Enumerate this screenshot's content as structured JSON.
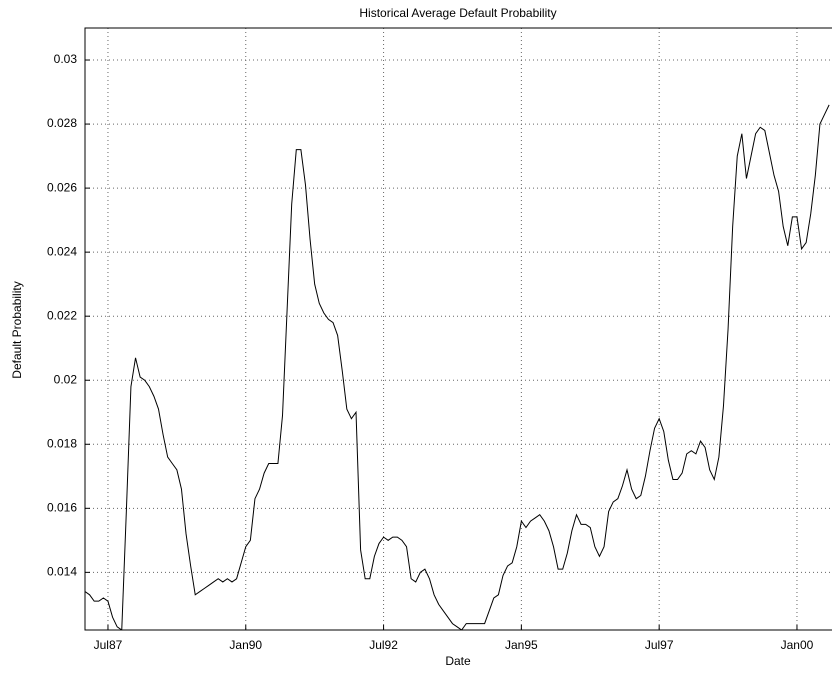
{
  "chart_data": {
    "type": "line",
    "title": "Historical Average Default Probability",
    "x_label": "Date",
    "y_label": "Default Probability",
    "categories": [
      null,
      null,
      null,
      null,
      null,
      "Jul87",
      null,
      null,
      null,
      null,
      null,
      null,
      null,
      null,
      null,
      null,
      null,
      null,
      null,
      null,
      null,
      null,
      null,
      null,
      null,
      null,
      null,
      null,
      null,
      null,
      null,
      null,
      null,
      null,
      null,
      "Jan90",
      null,
      null,
      null,
      null,
      null,
      null,
      null,
      null,
      null,
      null,
      null,
      null,
      null,
      null,
      null,
      null,
      null,
      null,
      null,
      null,
      null,
      null,
      null,
      null,
      null,
      null,
      null,
      null,
      null,
      "Jul92",
      null,
      null,
      null,
      null,
      null,
      null,
      null,
      null,
      null,
      null,
      null,
      null,
      null,
      null,
      null,
      null,
      null,
      null,
      null,
      null,
      null,
      null,
      null,
      null,
      null,
      null,
      null,
      null,
      null,
      "Jan95",
      null,
      null,
      null,
      null,
      null,
      null,
      null,
      null,
      null,
      null,
      null,
      null,
      null,
      null,
      null,
      null,
      null,
      null,
      null,
      null,
      null,
      null,
      null,
      null,
      null,
      null,
      null,
      null,
      null,
      "Jul97",
      null,
      null,
      null,
      null,
      null,
      null,
      null,
      null,
      null,
      null,
      null,
      null,
      null,
      null,
      null,
      null,
      null,
      null,
      null,
      null,
      null,
      null,
      null,
      null,
      null,
      null,
      null,
      null,
      null,
      "Jan00",
      null,
      null,
      null,
      null,
      null,
      null,
      null
    ],
    "values": [
      0.0134,
      0.0133,
      0.0131,
      0.0131,
      0.0132,
      0.0131,
      0.0126,
      0.0123,
      0.0122,
      0.0159,
      0.0198,
      0.0207,
      0.0201,
      0.02,
      0.0198,
      0.0195,
      0.0191,
      0.0183,
      0.0176,
      0.0174,
      0.0172,
      0.0166,
      0.0152,
      0.0142,
      0.0133,
      0.0134,
      0.0135,
      0.0136,
      0.0137,
      0.0138,
      0.0137,
      0.0138,
      0.0137,
      0.0138,
      0.0143,
      0.0148,
      0.015,
      0.0163,
      0.0166,
      0.0171,
      0.0174,
      0.0174,
      0.0174,
      0.0189,
      0.0222,
      0.0255,
      0.0272,
      0.0272,
      0.0261,
      0.0244,
      0.023,
      0.0224,
      0.0221,
      0.0219,
      0.0218,
      0.0214,
      0.0203,
      0.0191,
      0.0188,
      0.019,
      0.0147,
      0.0138,
      0.0138,
      0.0145,
      0.0149,
      0.0151,
      0.015,
      0.0151,
      0.0151,
      0.015,
      0.0148,
      0.0138,
      0.0137,
      0.014,
      0.0141,
      0.0138,
      0.0133,
      0.013,
      0.0128,
      0.0126,
      0.0124,
      0.0123,
      0.0122,
      0.0124,
      0.0124,
      0.0124,
      0.0124,
      0.0124,
      0.0128,
      0.0132,
      0.0133,
      0.0139,
      0.0142,
      0.0143,
      0.0148,
      0.0156,
      0.0154,
      0.0156,
      0.0157,
      0.0158,
      0.0156,
      0.0153,
      0.0148,
      0.0141,
      0.0141,
      0.0146,
      0.0153,
      0.0158,
      0.0155,
      0.0155,
      0.0154,
      0.0148,
      0.0145,
      0.0148,
      0.0159,
      0.0162,
      0.0163,
      0.0167,
      0.0172,
      0.0166,
      0.0163,
      0.0164,
      0.017,
      0.0178,
      0.0185,
      0.0188,
      0.0184,
      0.0175,
      0.0169,
      0.0169,
      0.0171,
      0.0177,
      0.0178,
      0.0177,
      0.0181,
      0.0179,
      0.0172,
      0.0169,
      0.0176,
      0.0192,
      0.0216,
      0.0248,
      0.027,
      0.0277,
      0.0263,
      0.027,
      0.0277,
      0.0279,
      0.0278,
      0.0271,
      0.0264,
      0.0259,
      0.0248,
      0.0242,
      0.0251,
      0.0251,
      0.0241,
      0.0243,
      0.0252,
      0.0264,
      0.028,
      0.0283,
      0.0286
    ],
    "color": "#000000",
    "ylim": [
      0.0122,
      0.031
    ],
    "yticks": [
      0.014,
      0.016,
      0.018,
      0.02,
      0.022,
      0.024,
      0.026,
      0.028,
      0.03
    ],
    "grid": true
  }
}
